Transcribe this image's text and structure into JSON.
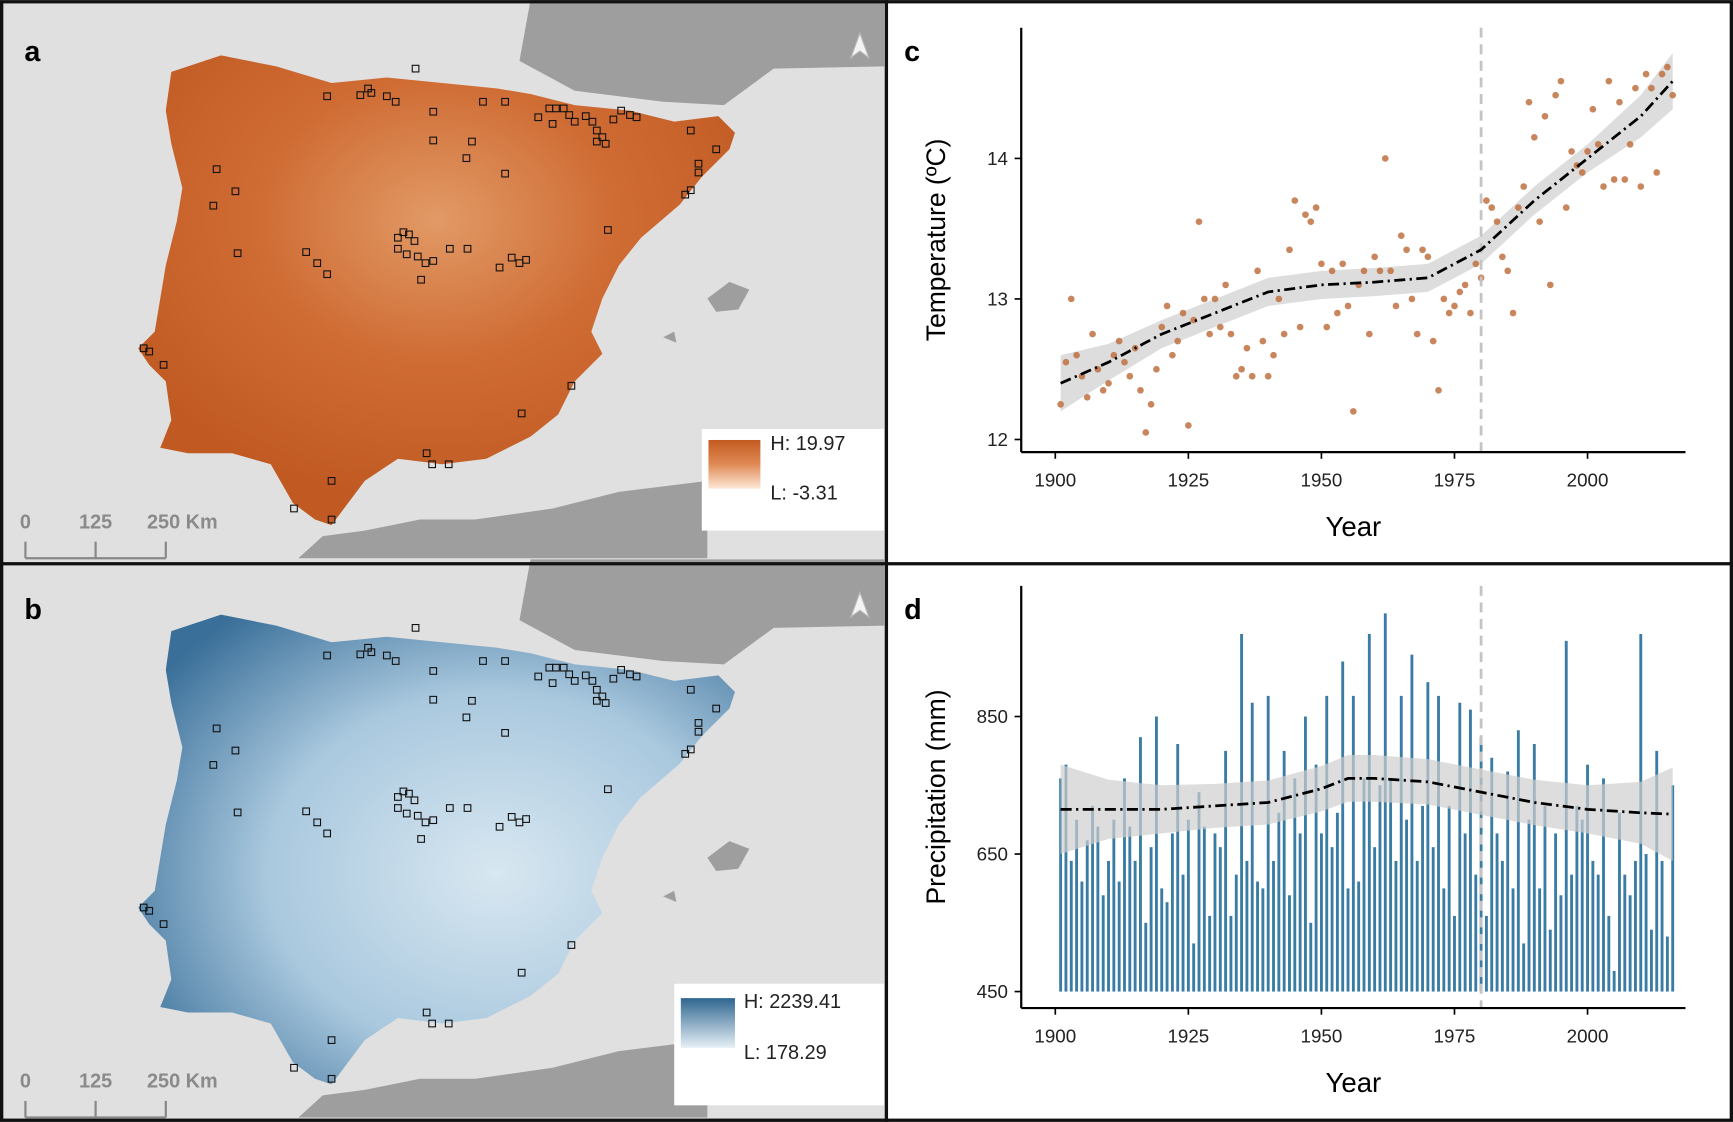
{
  "panel_labels": [
    "a",
    "b",
    "c",
    "d"
  ],
  "maps": [
    {
      "legend_high": "H: 19.97",
      "legend_low": "L: -3.31",
      "scale_ticks": [
        0,
        125,
        {
          "value": 250,
          "label": "250 Km"
        }
      ]
    },
    {
      "legend_high": "H: 2239.41",
      "legend_low": "L: 178.29",
      "scale_ticks": [
        0,
        125,
        {
          "value": 250,
          "label": "250 Km"
        }
      ]
    }
  ],
  "chart_data": [
    {
      "type": "scatter",
      "x_label": "Year",
      "y_label": "Temperature (ºC)",
      "color": "#c0703f",
      "x": [
        1901,
        1902,
        1903,
        1904,
        1905,
        1906,
        1907,
        1908,
        1909,
        1910,
        1911,
        1912,
        1913,
        1914,
        1915,
        1916,
        1917,
        1918,
        1919,
        1920,
        1921,
        1922,
        1923,
        1924,
        1925,
        1926,
        1927,
        1928,
        1929,
        1930,
        1931,
        1932,
        1933,
        1934,
        1935,
        1936,
        1937,
        1938,
        1939,
        1940,
        1941,
        1942,
        1943,
        1944,
        1945,
        1946,
        1947,
        1948,
        1949,
        1950,
        1951,
        1952,
        1953,
        1954,
        1955,
        1956,
        1957,
        1958,
        1959,
        1960,
        1961,
        1962,
        1963,
        1964,
        1965,
        1966,
        1967,
        1968,
        1969,
        1970,
        1971,
        1972,
        1973,
        1974,
        1975,
        1976,
        1977,
        1978,
        1979,
        1980,
        1981,
        1982,
        1983,
        1984,
        1985,
        1986,
        1987,
        1988,
        1989,
        1990,
        1991,
        1992,
        1993,
        1994,
        1995,
        1996,
        1997,
        1998,
        1999,
        2000,
        2001,
        2002,
        2003,
        2004,
        2005,
        2006,
        2007,
        2008,
        2009,
        2010,
        2011,
        2012,
        2013,
        2014,
        2015,
        2016
      ],
      "values": [
        12.25,
        12.55,
        13.0,
        12.6,
        12.45,
        12.3,
        12.75,
        12.5,
        12.35,
        12.4,
        12.6,
        12.7,
        12.55,
        12.45,
        12.65,
        12.35,
        12.05,
        12.25,
        12.5,
        12.8,
        12.95,
        12.6,
        12.7,
        12.9,
        12.1,
        12.85,
        13.55,
        13.0,
        12.75,
        13.0,
        12.8,
        13.1,
        12.75,
        12.45,
        12.5,
        12.65,
        12.45,
        13.2,
        12.7,
        12.45,
        12.6,
        13.0,
        12.75,
        13.35,
        13.7,
        12.8,
        13.6,
        13.55,
        13.65,
        13.25,
        12.8,
        13.2,
        12.9,
        13.25,
        12.95,
        12.2,
        13.1,
        13.2,
        12.75,
        13.3,
        13.2,
        14.0,
        13.2,
        12.95,
        13.45,
        13.35,
        13.0,
        12.75,
        13.35,
        13.3,
        12.7,
        12.35,
        13.0,
        12.9,
        12.95,
        13.05,
        13.1,
        12.9,
        13.25,
        13.15,
        13.7,
        13.65,
        13.55,
        13.3,
        13.2,
        12.9,
        13.65,
        13.8,
        14.4,
        14.15,
        13.55,
        14.3,
        13.1,
        14.45,
        14.55,
        13.65,
        14.05,
        13.95,
        13.9,
        14.05,
        14.35,
        14.1,
        13.8,
        14.55,
        13.85,
        14.4,
        13.85,
        14.1,
        14.5,
        13.8,
        14.6,
        14.5,
        13.9,
        14.6,
        14.65,
        14.45
      ],
      "smooth": {
        "x": [
          1901,
          1910,
          1920,
          1930,
          1940,
          1950,
          1960,
          1970,
          1980,
          1990,
          2000,
          2010,
          2016
        ],
        "values": [
          12.4,
          12.55,
          12.75,
          12.9,
          13.05,
          13.1,
          13.12,
          13.15,
          13.35,
          13.7,
          14.0,
          14.3,
          14.55
        ],
        "lower": [
          12.2,
          12.42,
          12.65,
          12.8,
          12.95,
          13.0,
          13.02,
          13.05,
          13.25,
          13.6,
          13.9,
          14.15,
          14.35
        ],
        "upper": [
          12.6,
          12.68,
          12.85,
          13.0,
          13.15,
          13.2,
          13.22,
          13.25,
          13.45,
          13.8,
          14.1,
          14.45,
          14.75
        ]
      },
      "vline": 1980,
      "xlim": [
        1893.6,
        2018.4
      ],
      "ylim": [
        11.91,
        14.93
      ],
      "xticks": [
        1900,
        1925,
        1950,
        1975,
        2000
      ],
      "yticks": [
        12,
        13,
        14
      ]
    },
    {
      "type": "bar",
      "x_label": "Year",
      "y_label": "Precipitation (mm)",
      "color": "#3a7ca3",
      "x": [
        1901,
        1902,
        1903,
        1904,
        1905,
        1906,
        1907,
        1908,
        1909,
        1910,
        1911,
        1912,
        1913,
        1914,
        1915,
        1916,
        1917,
        1918,
        1919,
        1920,
        1921,
        1922,
        1923,
        1924,
        1925,
        1926,
        1927,
        1928,
        1929,
        1930,
        1931,
        1932,
        1933,
        1934,
        1935,
        1936,
        1937,
        1938,
        1939,
        1940,
        1941,
        1942,
        1943,
        1944,
        1945,
        1946,
        1947,
        1948,
        1949,
        1950,
        1951,
        1952,
        1953,
        1954,
        1955,
        1956,
        1957,
        1958,
        1959,
        1960,
        1961,
        1962,
        1963,
        1964,
        1965,
        1966,
        1967,
        1968,
        1969,
        1970,
        1971,
        1972,
        1973,
        1974,
        1975,
        1976,
        1977,
        1978,
        1979,
        1980,
        1981,
        1982,
        1983,
        1984,
        1985,
        1986,
        1987,
        1988,
        1989,
        1990,
        1991,
        1992,
        1993,
        1994,
        1995,
        1996,
        1997,
        1998,
        1999,
        2000,
        2001,
        2002,
        2003,
        2004,
        2005,
        2006,
        2007,
        2008,
        2009,
        2010,
        2011,
        2012,
        2013,
        2014,
        2015,
        2016
      ],
      "values": [
        760,
        780,
        640,
        700,
        610,
        670,
        720,
        690,
        590,
        640,
        700,
        610,
        760,
        690,
        640,
        820,
        550,
        660,
        850,
        600,
        580,
        680,
        810,
        620,
        700,
        520,
        740,
        690,
        560,
        680,
        660,
        800,
        560,
        620,
        970,
        640,
        870,
        610,
        600,
        880,
        640,
        710,
        800,
        590,
        760,
        680,
        850,
        550,
        780,
        680,
        880,
        660,
        710,
        930,
        600,
        880,
        610,
        760,
        970,
        660,
        750,
        1000,
        760,
        640,
        880,
        700,
        940,
        640,
        720,
        900,
        660,
        880,
        600,
        720,
        560,
        870,
        680,
        860,
        620,
        820,
        560,
        790,
        680,
        640,
        770,
        600,
        830,
        520,
        700,
        810,
        600,
        720,
        540,
        680,
        590,
        960,
        620,
        720,
        700,
        780,
        640,
        620,
        760,
        560,
        480,
        710,
        620,
        590,
        640,
        970,
        650,
        540,
        800,
        640,
        530,
        750
      ],
      "smooth": {
        "x": [
          1901,
          1910,
          1920,
          1930,
          1940,
          1950,
          1955,
          1960,
          1970,
          1980,
          1990,
          2000,
          2010,
          2016
        ],
        "values": [
          715,
          715,
          715,
          720,
          725,
          745,
          760,
          760,
          755,
          740,
          725,
          715,
          710,
          708
        ],
        "lower": [
          650,
          672,
          680,
          688,
          693,
          712,
          726,
          726,
          722,
          707,
          692,
          680,
          665,
          640
        ],
        "upper": [
          780,
          758,
          750,
          752,
          757,
          778,
          794,
          794,
          788,
          773,
          758,
          750,
          755,
          776
        ]
      },
      "vline": 1980,
      "xlim": [
        1893.6,
        2018.4
      ],
      "ylim": [
        426,
        1040
      ],
      "xticks": [
        1900,
        1925,
        1950,
        1975,
        2000
      ],
      "yticks": [
        450,
        650,
        850
      ]
    }
  ]
}
